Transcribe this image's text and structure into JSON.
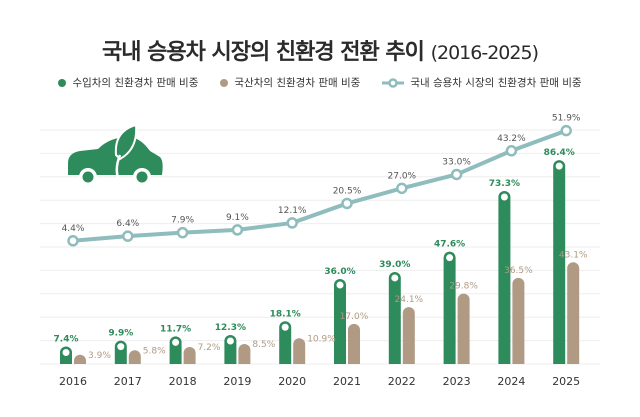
{
  "chart_data": {
    "type": "bar+line",
    "title": "국내 승용차 시장의 친환경 전환 추이",
    "subtitle": "(2016-2025)",
    "categories": [
      "2016",
      "2017",
      "2018",
      "2019",
      "2020",
      "2021",
      "2022",
      "2023",
      "2024",
      "2025"
    ],
    "series": [
      {
        "name": "수입차의 친환경차 판매 비중",
        "kind": "bar",
        "color": "#2e8b5b",
        "values": [
          7.4,
          9.9,
          11.7,
          12.3,
          18.1,
          36.0,
          39.0,
          47.6,
          73.3,
          86.4
        ]
      },
      {
        "name": "국산차의 친환경차 판매 비중",
        "kind": "bar",
        "color": "#b09a84",
        "values": [
          3.9,
          5.8,
          7.2,
          8.5,
          10.9,
          17.0,
          24.1,
          29.8,
          36.5,
          43.1
        ]
      },
      {
        "name": "국내 승용차 시장의 친환경차 판매 비중",
        "kind": "line",
        "color": "#8fbcbc",
        "values": [
          4.4,
          6.4,
          7.9,
          9.1,
          12.1,
          20.5,
          27.0,
          33.0,
          43.2,
          51.9
        ]
      }
    ],
    "value_suffix": "%",
    "grid": true,
    "legend_position": "top",
    "icon": "eco-car-leaf-icon"
  }
}
